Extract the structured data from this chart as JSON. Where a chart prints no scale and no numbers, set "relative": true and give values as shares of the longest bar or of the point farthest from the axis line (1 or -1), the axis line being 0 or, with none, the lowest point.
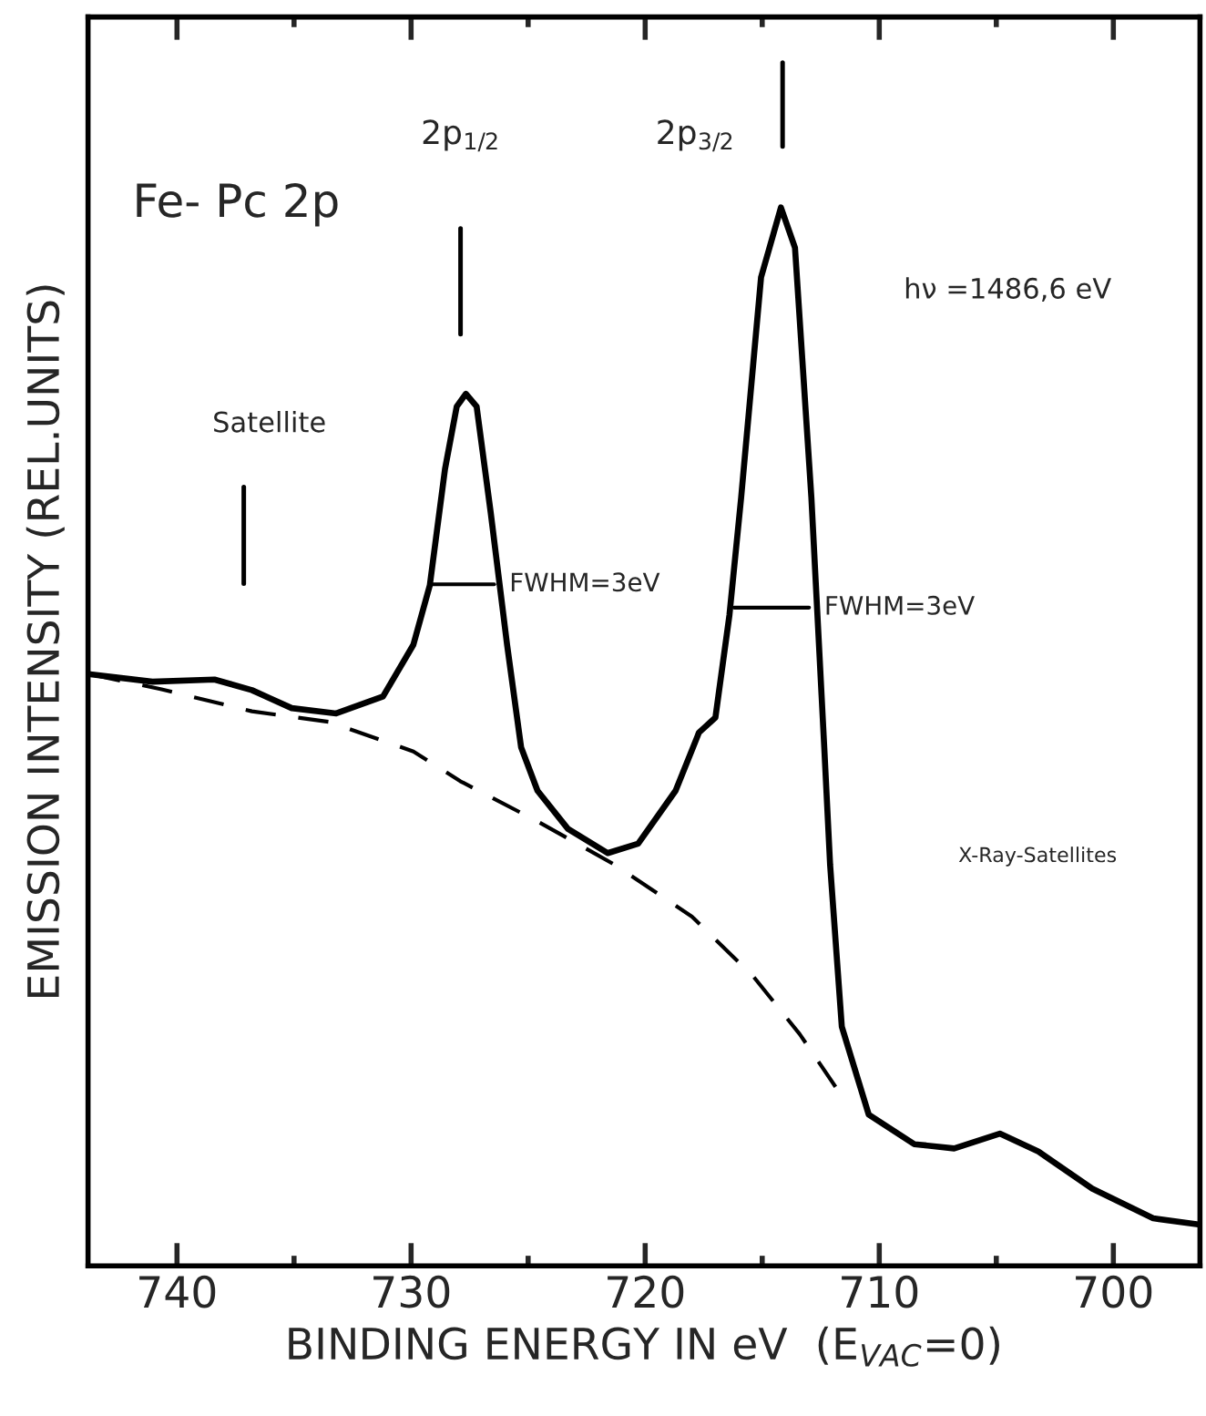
{
  "chart_data": {
    "type": "line",
    "title": "Fe- Pc 2p",
    "xlabel": "BINDING ENERGY IN eV  (E$_{VAC}$=0)",
    "ylabel": "EMISSION INTENSITY (REL.UNITS)",
    "relative": true,
    "xlim": [
      743.8,
      696.3
    ],
    "xticks": [
      740,
      {
        "value": 735,
        "label": null
      },
      730,
      {
        "value": 725,
        "label": null
      },
      720,
      {
        "value": 715,
        "label": null
      },
      710,
      {
        "value": 705,
        "label": null
      },
      700
    ],
    "grid": false,
    "legend": false,
    "series": [
      {
        "color": "#000000",
        "line_style": "solid",
        "x": [
          743.7,
          741.05,
          738.4,
          736.8,
          735.1,
          733.2,
          731.2,
          729.9,
          729.2,
          728.55,
          728.05,
          727.66,
          727.2,
          726.6,
          725.9,
          725.3,
          724.6,
          723.3,
          721.6,
          720.3,
          718.7,
          717.7,
          717.0,
          716.4,
          715.9,
          715.05,
          714.2,
          713.6,
          712.9,
          712.35,
          712.1,
          711.6,
          710.45,
          708.5,
          706.8,
          704.85,
          703.2,
          700.9,
          698.3,
          696.3
        ],
        "values": [
          0.559,
          0.552,
          0.554,
          0.544,
          0.527,
          0.522,
          0.538,
          0.587,
          0.643,
          0.753,
          0.812,
          0.824,
          0.812,
          0.712,
          0.587,
          0.49,
          0.449,
          0.413,
          0.39,
          0.399,
          0.449,
          0.504,
          0.518,
          0.615,
          0.726,
          0.934,
          1,
          0.962,
          0.726,
          0.49,
          0.379,
          0.226,
          0.143,
          0.115,
          0.111,
          0.125,
          0.108,
          0.073,
          0.045,
          0.039
        ]
      },
      {
        "color": "#000000",
        "line_style": "dashed",
        "x": [
          743.7,
          740.7,
          736.8,
          733.5,
          729.9,
          727.9,
          724.6,
          721.3,
          718.0,
          715.4,
          713.4,
          711.8
        ],
        "values": [
          0.559,
          0.545,
          0.524,
          0.514,
          0.486,
          0.458,
          0.42,
          0.379,
          0.33,
          0.274,
          0.219,
          0.167
        ]
      },
      {
        "color": "#000000",
        "line_style": "solid",
        "x": [
          729.1,
          726.45
        ],
        "values": [
          0.644,
          0.644
        ]
      },
      {
        "color": "#000000",
        "line_style": "solid",
        "x": [
          716.2,
          713.0
        ],
        "values": [
          0.622,
          0.622
        ]
      }
    ],
    "annotations": [
      "2p$_{1/2}$",
      "2p$_{3/2}$",
      "Satellite",
      {
        "text": "FWHM=3eV",
        "x": 726.45,
        "y": 0.644
      },
      {
        "text": "FWHM=3eV",
        "x": 713.0,
        "y": 0.622
      },
      "hν =1486,6 eV",
      "X-Ray-Satellites"
    ]
  }
}
